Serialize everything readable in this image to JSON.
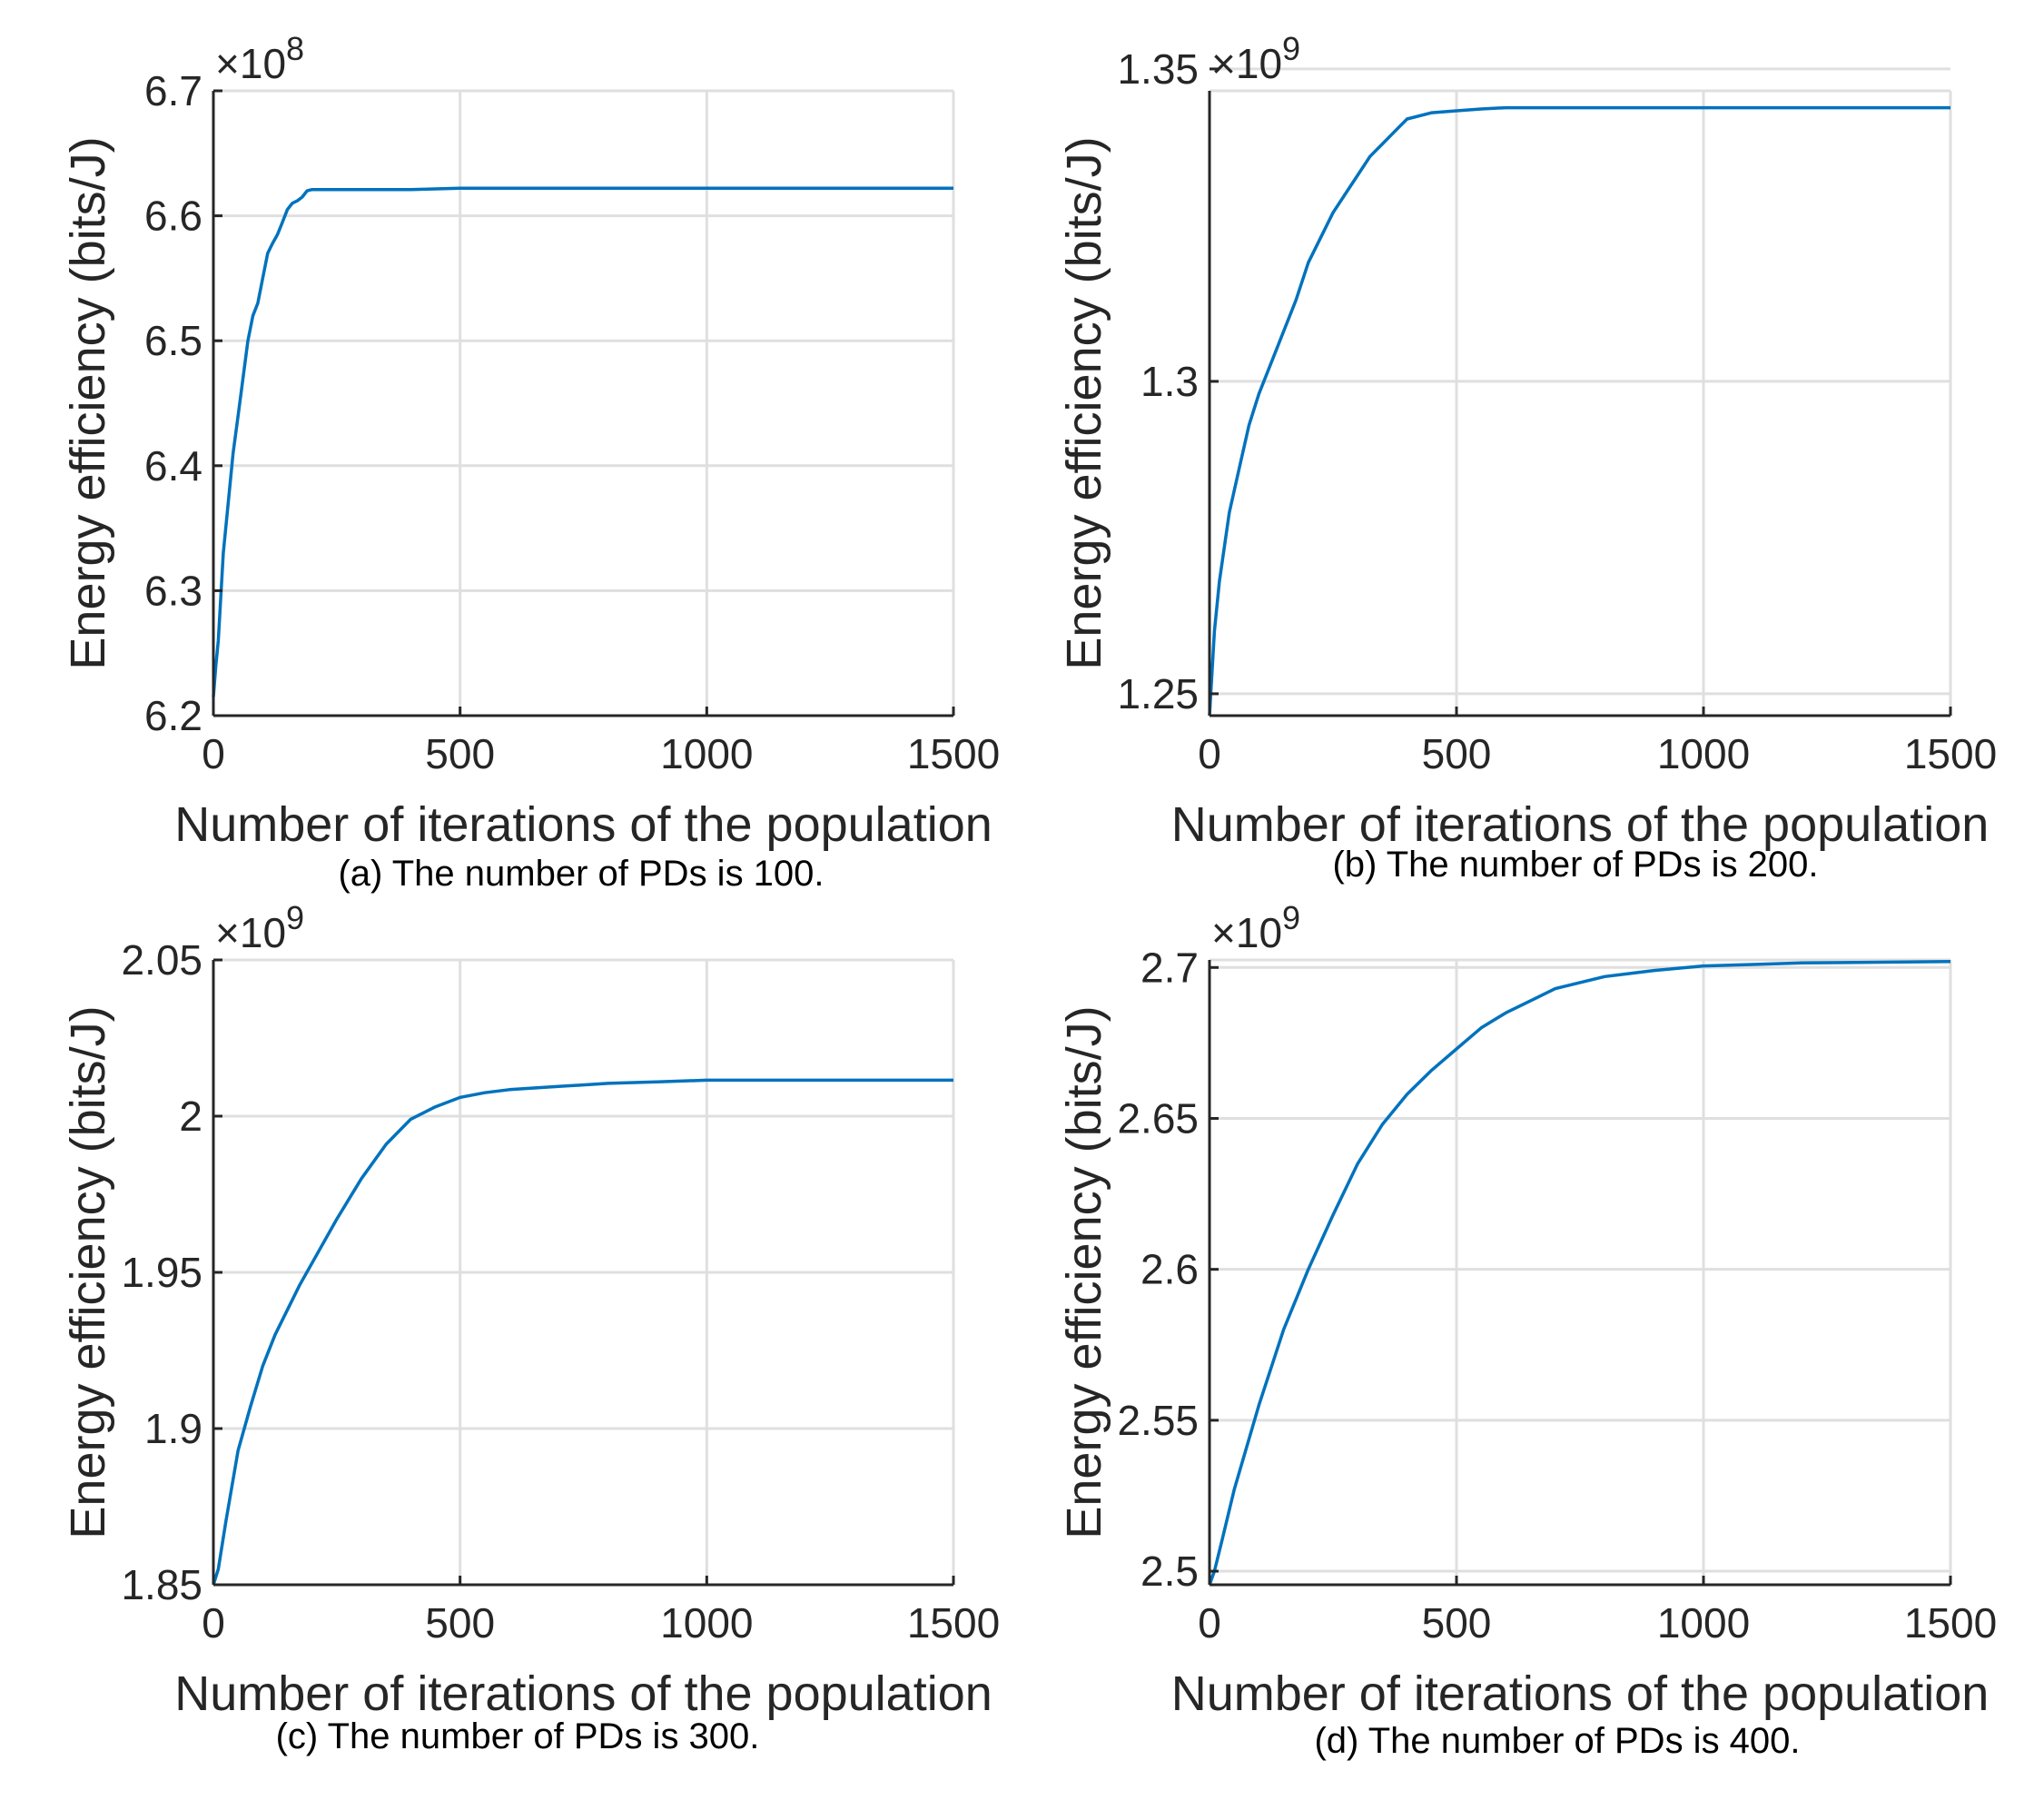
{
  "colors": {
    "series": "#0072bd",
    "grid": "#dfdfdf",
    "axis": "#262626"
  },
  "chart_data": [
    {
      "type": "line",
      "caption": "(a) The number of PDs is 100.",
      "xlabel": "Number of iterations of the population",
      "ylabel": "Energy efficiency (bits/J)",
      "exponent_label": "×10",
      "exponent_power": "8",
      "xlim": [
        0,
        1500
      ],
      "ylim": [
        6.2,
        6.7
      ],
      "xticks": [
        0,
        500,
        1000,
        1500
      ],
      "xtick_labels": [
        "0",
        "500",
        "1000",
        "1500"
      ],
      "yticks": [
        6.2,
        6.3,
        6.4,
        6.5,
        6.6,
        6.7
      ],
      "ytick_labels": [
        "6.2",
        "6.3",
        "6.4",
        "6.5",
        "6.6",
        "6.7"
      ],
      "grid": true,
      "series": [
        {
          "name": "Energy efficiency",
          "x": [
            0,
            5,
            10,
            20,
            30,
            40,
            50,
            60,
            70,
            80,
            90,
            100,
            110,
            120,
            130,
            140,
            150,
            160,
            170,
            180,
            190,
            200,
            300,
            400,
            500,
            1000,
            1500
          ],
          "y": [
            6.215,
            6.24,
            6.26,
            6.33,
            6.37,
            6.41,
            6.44,
            6.47,
            6.5,
            6.52,
            6.53,
            6.55,
            6.57,
            6.578,
            6.585,
            6.595,
            6.605,
            6.61,
            6.612,
            6.615,
            6.62,
            6.621,
            6.621,
            6.621,
            6.622,
            6.622,
            6.622
          ]
        }
      ]
    },
    {
      "type": "line",
      "caption": "(b) The number of PDs is 200.",
      "xlabel": "Number of iterations of the population",
      "ylabel": "Energy efficiency (bits/J)",
      "exponent_label": "×10",
      "exponent_power": "9",
      "xlim": [
        0,
        1500
      ],
      "ylim": [
        1.2465,
        1.3465
      ],
      "xticks": [
        0,
        500,
        1000,
        1500
      ],
      "xtick_labels": [
        "0",
        "500",
        "1000",
        "1500"
      ],
      "yticks": [
        1.25,
        1.3,
        1.35
      ],
      "ytick_labels": [
        "1.25",
        "1.3",
        "1.35"
      ],
      "grid": true,
      "series": [
        {
          "name": "Energy efficiency",
          "x": [
            0,
            10,
            20,
            40,
            60,
            80,
            100,
            125,
            150,
            175,
            200,
            225,
            250,
            275,
            300,
            325,
            350,
            375,
            400,
            450,
            500,
            550,
            600,
            1000,
            1500
          ],
          "y": [
            1.2465,
            1.26,
            1.268,
            1.279,
            1.286,
            1.293,
            1.298,
            1.303,
            1.308,
            1.313,
            1.319,
            1.323,
            1.327,
            1.33,
            1.333,
            1.336,
            1.338,
            1.34,
            1.342,
            1.343,
            1.3433,
            1.3436,
            1.3438,
            1.3438,
            1.3438
          ]
        }
      ]
    },
    {
      "type": "line",
      "caption": "(c) The number of PDs is 300.",
      "xlabel": "Number of iterations of the population",
      "ylabel": "Energy efficiency (bits/J)",
      "exponent_label": "×10",
      "exponent_power": "9",
      "xlim": [
        0,
        1500
      ],
      "ylim": [
        1.85,
        2.05
      ],
      "xticks": [
        0,
        500,
        1000,
        1500
      ],
      "xtick_labels": [
        "0",
        "500",
        "1000",
        "1500"
      ],
      "yticks": [
        1.85,
        1.9,
        1.95,
        2.0,
        2.05
      ],
      "ytick_labels": [
        "1.85",
        "1.9",
        "1.95",
        "2",
        "2.05"
      ],
      "grid": true,
      "series": [
        {
          "name": "Energy efficiency",
          "x": [
            0,
            10,
            25,
            50,
            75,
            100,
            125,
            150,
            175,
            200,
            250,
            300,
            350,
            400,
            450,
            500,
            550,
            600,
            700,
            800,
            900,
            1000,
            1200,
            1500
          ],
          "y": [
            1.85,
            1.855,
            1.87,
            1.893,
            1.907,
            1.92,
            1.93,
            1.938,
            1.946,
            1.953,
            1.967,
            1.98,
            1.991,
            1.999,
            2.003,
            2.006,
            2.0075,
            2.0085,
            2.0095,
            2.0105,
            2.011,
            2.0115,
            2.0115,
            2.0115
          ]
        }
      ]
    },
    {
      "type": "line",
      "caption": "(d) The number of PDs is 400.",
      "xlabel": "Number of iterations of the population",
      "ylabel": "Energy efficiency (bits/J)",
      "exponent_label": "×10",
      "exponent_power": "9",
      "xlim": [
        0,
        1500
      ],
      "ylim": [
        2.4955,
        2.7025
      ],
      "xticks": [
        0,
        500,
        1000,
        1500
      ],
      "xtick_labels": [
        "0",
        "500",
        "1000",
        "1500"
      ],
      "yticks": [
        2.5,
        2.55,
        2.6,
        2.65,
        2.7
      ],
      "ytick_labels": [
        "2.5",
        "2.55",
        "2.6",
        "2.65",
        "2.7"
      ],
      "grid": true,
      "series": [
        {
          "name": "Energy efficiency",
          "x": [
            0,
            10,
            25,
            50,
            75,
            100,
            150,
            200,
            250,
            300,
            350,
            400,
            450,
            500,
            550,
            600,
            650,
            700,
            800,
            900,
            1000,
            1100,
            1200,
            1500
          ],
          "y": [
            2.4955,
            2.5,
            2.51,
            2.527,
            2.541,
            2.555,
            2.58,
            2.6,
            2.618,
            2.635,
            2.648,
            2.658,
            2.666,
            2.673,
            2.68,
            2.685,
            2.689,
            2.693,
            2.697,
            2.699,
            2.7005,
            2.701,
            2.7015,
            2.702
          ]
        }
      ]
    }
  ]
}
